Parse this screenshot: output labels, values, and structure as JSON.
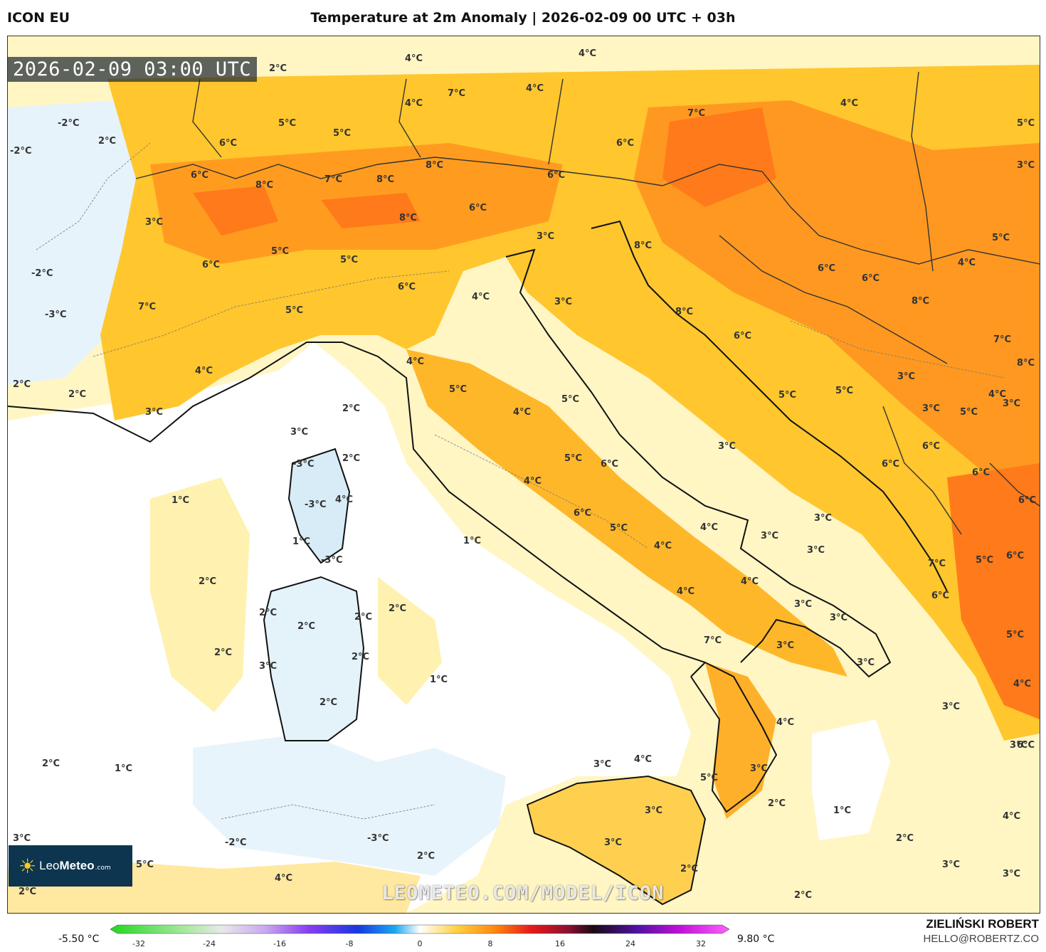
{
  "header": {
    "model": "ICON EU",
    "title": "Temperature at 2m Anomaly | 2026-02-09 00 UTC + 03h"
  },
  "map": {
    "timestamp": "2026-02-09 03:00 UTC",
    "watermark": "LEOMETEO.COM/MODEL/ICON",
    "labels": [
      {
        "t": "2°C"
      },
      {
        "t": "4°C"
      },
      {
        "t": "4°C"
      },
      {
        "t": "7°C"
      },
      {
        "t": "4°C"
      },
      {
        "t": "4°C"
      },
      {
        "t": "7°C"
      },
      {
        "t": "4°C"
      },
      {
        "t": "5°C"
      },
      {
        "t": "-2°C"
      },
      {
        "t": "-2°C"
      },
      {
        "t": "2°C"
      },
      {
        "t": "5°C"
      },
      {
        "t": "5°C"
      },
      {
        "t": "6°C"
      },
      {
        "t": "6°C"
      },
      {
        "t": "8°C"
      },
      {
        "t": "6°C"
      },
      {
        "t": "7°C"
      },
      {
        "t": "8°C"
      },
      {
        "t": "8°C"
      },
      {
        "t": "6°C"
      },
      {
        "t": "3°C"
      },
      {
        "t": "8°C"
      },
      {
        "t": "6°C"
      },
      {
        "t": "3°C"
      },
      {
        "t": "-2°C"
      },
      {
        "t": "5°C"
      },
      {
        "t": "6°C"
      },
      {
        "t": "5°C"
      },
      {
        "t": "6°C"
      },
      {
        "t": "4°C"
      },
      {
        "t": "3°C"
      },
      {
        "t": "-3°C"
      },
      {
        "t": "7°C"
      },
      {
        "t": "8°C"
      },
      {
        "t": "5°C"
      },
      {
        "t": "3°C"
      },
      {
        "t": "4°C"
      },
      {
        "t": "2°C"
      },
      {
        "t": "2°C"
      },
      {
        "t": "3°C"
      },
      {
        "t": "4°C"
      },
      {
        "t": "5°C"
      },
      {
        "t": "4°C"
      },
      {
        "t": "5°C"
      },
      {
        "t": "2°C"
      },
      {
        "t": "3°C"
      },
      {
        "t": "2°C"
      },
      {
        "t": "-3°C"
      },
      {
        "t": "-3°C"
      },
      {
        "t": "4°C"
      },
      {
        "t": "1°C"
      },
      {
        "t": "1°C"
      },
      {
        "t": "1°C"
      },
      {
        "t": "-3°C"
      },
      {
        "t": "5°C"
      },
      {
        "t": "6°C"
      },
      {
        "t": "4°C"
      },
      {
        "t": "6°C"
      },
      {
        "t": "5°C"
      },
      {
        "t": "2°C"
      },
      {
        "t": "2°C"
      },
      {
        "t": "2°C"
      },
      {
        "t": "2°C"
      },
      {
        "t": "2°C"
      },
      {
        "t": "2°C"
      },
      {
        "t": "2°C"
      },
      {
        "t": "3°C"
      },
      {
        "t": "2°C"
      },
      {
        "t": "1°C"
      },
      {
        "t": "3°C"
      },
      {
        "t": "4°C"
      },
      {
        "t": "3°C"
      },
      {
        "t": "3°C"
      },
      {
        "t": "3°C"
      },
      {
        "t": "4°C"
      },
      {
        "t": "4°C"
      },
      {
        "t": "4°C"
      },
      {
        "t": "3°C"
      },
      {
        "t": "3°C"
      },
      {
        "t": "7°C"
      },
      {
        "t": "3°C"
      },
      {
        "t": "3°C"
      },
      {
        "t": "4°C"
      },
      {
        "t": "3°C"
      },
      {
        "t": "4°C"
      },
      {
        "t": "5°C"
      },
      {
        "t": "3°C"
      },
      {
        "t": "3°C"
      },
      {
        "t": "3°C"
      },
      {
        "t": "2°C"
      },
      {
        "t": "1°C"
      },
      {
        "t": "2°C"
      },
      {
        "t": "1°C"
      },
      {
        "t": "2°C"
      },
      {
        "t": "3°C"
      },
      {
        "t": "-2°C"
      },
      {
        "t": "-3°C"
      },
      {
        "t": "2°C"
      },
      {
        "t": "4°C"
      },
      {
        "t": "5°C"
      },
      {
        "t": "2°C"
      },
      {
        "t": "2°C"
      },
      {
        "t": "3°C"
      },
      {
        "t": "2°C"
      },
      {
        "t": "3°C"
      },
      {
        "t": "3°C"
      },
      {
        "t": "4°C"
      },
      {
        "t": "6°C"
      },
      {
        "t": "4°C"
      },
      {
        "t": "5°C"
      },
      {
        "t": "7°C"
      },
      {
        "t": "6°C"
      },
      {
        "t": "5°C"
      },
      {
        "t": "6°C"
      },
      {
        "t": "6°C"
      },
      {
        "t": "6°C"
      },
      {
        "t": "6°C"
      },
      {
        "t": "8°C"
      },
      {
        "t": "7°C"
      },
      {
        "t": "8°C"
      },
      {
        "t": "6°C"
      },
      {
        "t": "6°C"
      },
      {
        "t": "5°C"
      },
      {
        "t": "5°C"
      },
      {
        "t": "6°C"
      },
      {
        "t": "8°C"
      },
      {
        "t": "3°C"
      },
      {
        "t": "3°C"
      },
      {
        "t": "3°C"
      },
      {
        "t": "4°C"
      },
      {
        "t": "5°C"
      },
      {
        "t": "4°C"
      },
      {
        "t": "5°C"
      },
      {
        "t": "6°C"
      },
      {
        "t": "3°C"
      },
      {
        "t": "2°C"
      }
    ]
  },
  "logo": {
    "name_light": "Leo",
    "name_bold": "Meteo",
    "domain": ".com"
  },
  "colorbar": {
    "min_label": "-5.50 °C",
    "max_label": "9.80 °C",
    "ticks": [
      "-32",
      "-24",
      "-16",
      "-8",
      "0",
      "8",
      "16",
      "24",
      "32"
    ]
  },
  "credit": {
    "name": "ZIELIŃSKI ROBERT",
    "email": "HELLO@ROBERTZ.CO"
  }
}
